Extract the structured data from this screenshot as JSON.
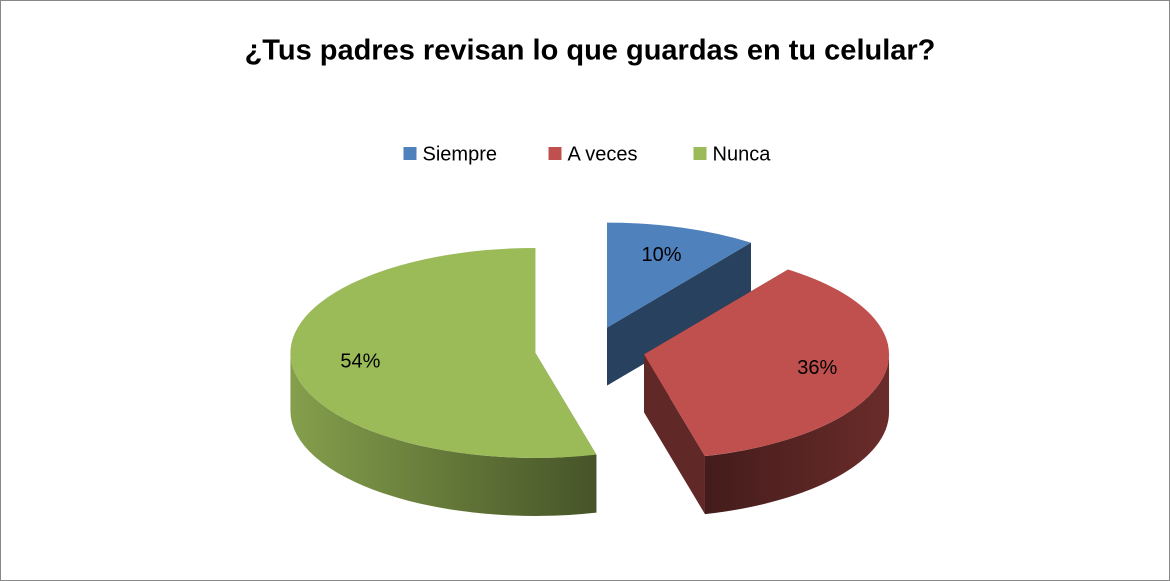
{
  "chart_data": {
    "type": "pie",
    "title": "¿Tus padres revisan lo que guardas en tu celular?",
    "categories": [
      "Siempre",
      "A veces",
      "Nunca"
    ],
    "values": [
      10,
      36,
      54
    ],
    "value_labels": [
      "10%",
      "36%",
      "54%"
    ],
    "colors": [
      "#4f81bd",
      "#c0504d",
      "#9bbb59"
    ],
    "legend": "top"
  }
}
